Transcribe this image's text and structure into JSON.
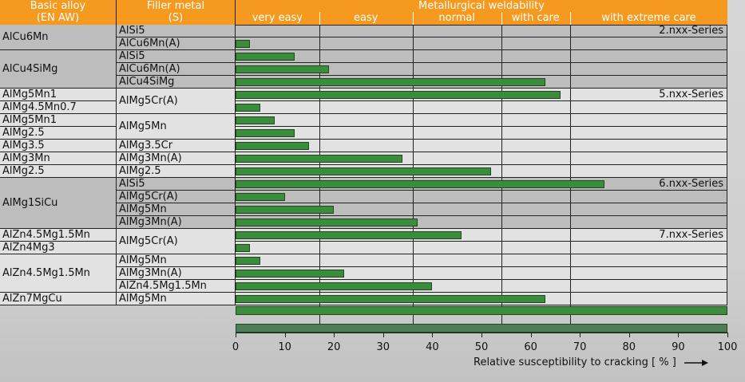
{
  "header": {
    "basic_alloy": "Basic alloy",
    "basic_alloy_sub": "(EN AW)",
    "filler_metal": "Filler metal",
    "filler_metal_sub": "(S)",
    "weldability_title": "Metallurgical weldability",
    "categories": [
      "very easy",
      "easy",
      "normal",
      "with care",
      "with extreme care"
    ]
  },
  "chart_data": {
    "type": "bar",
    "orientation": "horizontal",
    "title": "Metallurgical weldability",
    "xlabel": "Relative susceptibility to cracking [ % ]",
    "xlim": [
      0,
      100
    ],
    "xticks": [
      "0",
      "10",
      "20",
      "30",
      "40",
      "50",
      "60",
      "70",
      "80",
      "90",
      "100"
    ],
    "rows": [
      {
        "alloy": "AlCu6Mn",
        "filler": "AlSi5",
        "value": 0
      },
      {
        "alloy": "",
        "filler": "AlCu6Mn(A)",
        "value": 3
      },
      {
        "alloy": "AlCu4SiMg",
        "filler": "AlSi5",
        "value": 12
      },
      {
        "alloy": "",
        "filler": "AlCu6Mn(A)",
        "value": 19
      },
      {
        "alloy": "",
        "filler": "AlCu4SiMg",
        "value": 63
      },
      {
        "alloy": "AlMg5Mn1",
        "filler": "AlMg5Cr(A)",
        "value": 66
      },
      {
        "alloy": "AlMg4.5Mn0.7",
        "filler": "",
        "value": 5
      },
      {
        "alloy": "AlMg5Mn1",
        "filler": "AlMg5Mn",
        "value": 8
      },
      {
        "alloy": "AlMg2.5",
        "filler": "",
        "value": 12
      },
      {
        "alloy": "AlMg3.5",
        "filler": "AlMg3.5Cr",
        "value": 15
      },
      {
        "alloy": "AlMg3Mn",
        "filler": "AlMg3Mn(A)",
        "value": 34
      },
      {
        "alloy": "AlMg2.5",
        "filler": "AlMg2.5",
        "value": 52
      },
      {
        "alloy": "AlMg1SiCu",
        "filler": "AlSi5",
        "value": 75
      },
      {
        "alloy": "",
        "filler": "AlMg5Cr(A)",
        "value": 10
      },
      {
        "alloy": "",
        "filler": "AlMg5Mn",
        "value": 20
      },
      {
        "alloy": "",
        "filler": "AlMg3Mn(A)",
        "value": 37
      },
      {
        "alloy": "AlZn4.5Mg1.5Mn",
        "filler": "AlMg5Cr(A)",
        "value": 46
      },
      {
        "alloy": "AlZn4Mg3",
        "filler": "",
        "value": 3
      },
      {
        "alloy": "AlZn4.5Mg1.5Mn",
        "filler": "AlMg5Mn",
        "value": 5
      },
      {
        "alloy": "",
        "filler": "AlMg3Mn(A)",
        "value": 22
      },
      {
        "alloy": "",
        "filler": "AlZn4.5Mg1.5Mn",
        "value": 40
      },
      {
        "alloy": "AlZn7MgCu",
        "filler": "AlMg5Mn",
        "value": 63
      }
    ],
    "scale_bars": [
      100,
      100
    ],
    "category_bounds": [
      0,
      17,
      36,
      54,
      68,
      100
    ],
    "series_labels": [
      "2.nxx-Series",
      "5.nxx-Series",
      "6.nxx-Series",
      "7.nxx-Series"
    ]
  },
  "colors": {
    "header_bg": "#f59a1e",
    "bar_fill": "#3d8b3d",
    "group_grey": "#bdbdbd",
    "group_light": "#e2e2e2"
  }
}
